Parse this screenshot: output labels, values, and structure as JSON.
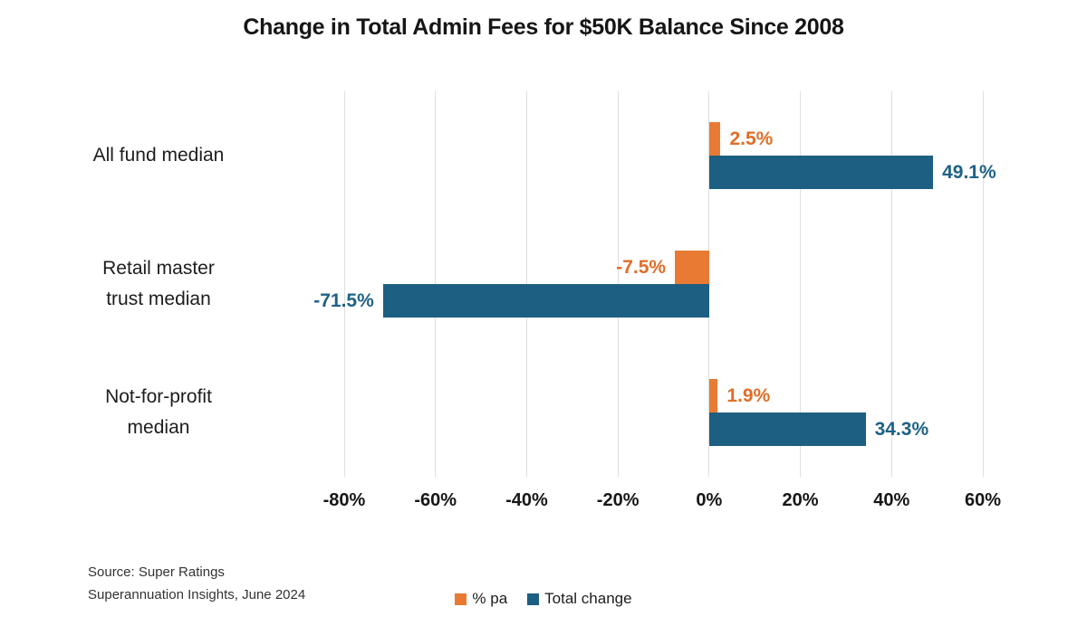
{
  "title": "Change in Total Admin Fees for $50K Balance Since 2008",
  "source": {
    "line1": "Source: Super Ratings",
    "line2": "Superannuation Insights, June 2024"
  },
  "legend": [
    {
      "id": "pct-pa",
      "label": "% pa",
      "color": "#E87A34"
    },
    {
      "id": "total-change",
      "label": "Total change",
      "color": "#1C5F82"
    }
  ],
  "colors": {
    "orange": "#E87A34",
    "blue": "#1C5F82",
    "gridline": "#dedede",
    "text": "#161616"
  },
  "chart_data": {
    "type": "bar",
    "orientation": "horizontal",
    "title": "Change in Total Admin Fees for $50K Balance Since 2008",
    "categories": [
      "All fund median",
      "Retail master\ntrust median",
      "Not-for-profit\nmedian"
    ],
    "series": [
      {
        "id": "pct-pa",
        "name": "% pa",
        "color": "#E87A34",
        "label_color": "#E06E28",
        "values": [
          2.5,
          -7.5,
          1.9
        ],
        "labels": [
          "2.5%",
          "-7.5%",
          "1.9%"
        ]
      },
      {
        "id": "total-change",
        "name": "Total change",
        "color": "#1C5F82",
        "label_color": "#1E6286",
        "values": [
          49.1,
          -71.5,
          34.3
        ],
        "labels": [
          "49.1%",
          "-71.5%",
          "34.3%"
        ]
      }
    ],
    "xlim": [
      -80,
      60
    ],
    "ticks": [
      -80,
      -60,
      -40,
      -20,
      0,
      20,
      40,
      60
    ],
    "tick_labels": [
      "-80%",
      "-60%",
      "-40%",
      "-20%",
      "0%",
      "20%",
      "40%",
      "60%"
    ],
    "grid": true,
    "legend_position": "bottom-center"
  }
}
